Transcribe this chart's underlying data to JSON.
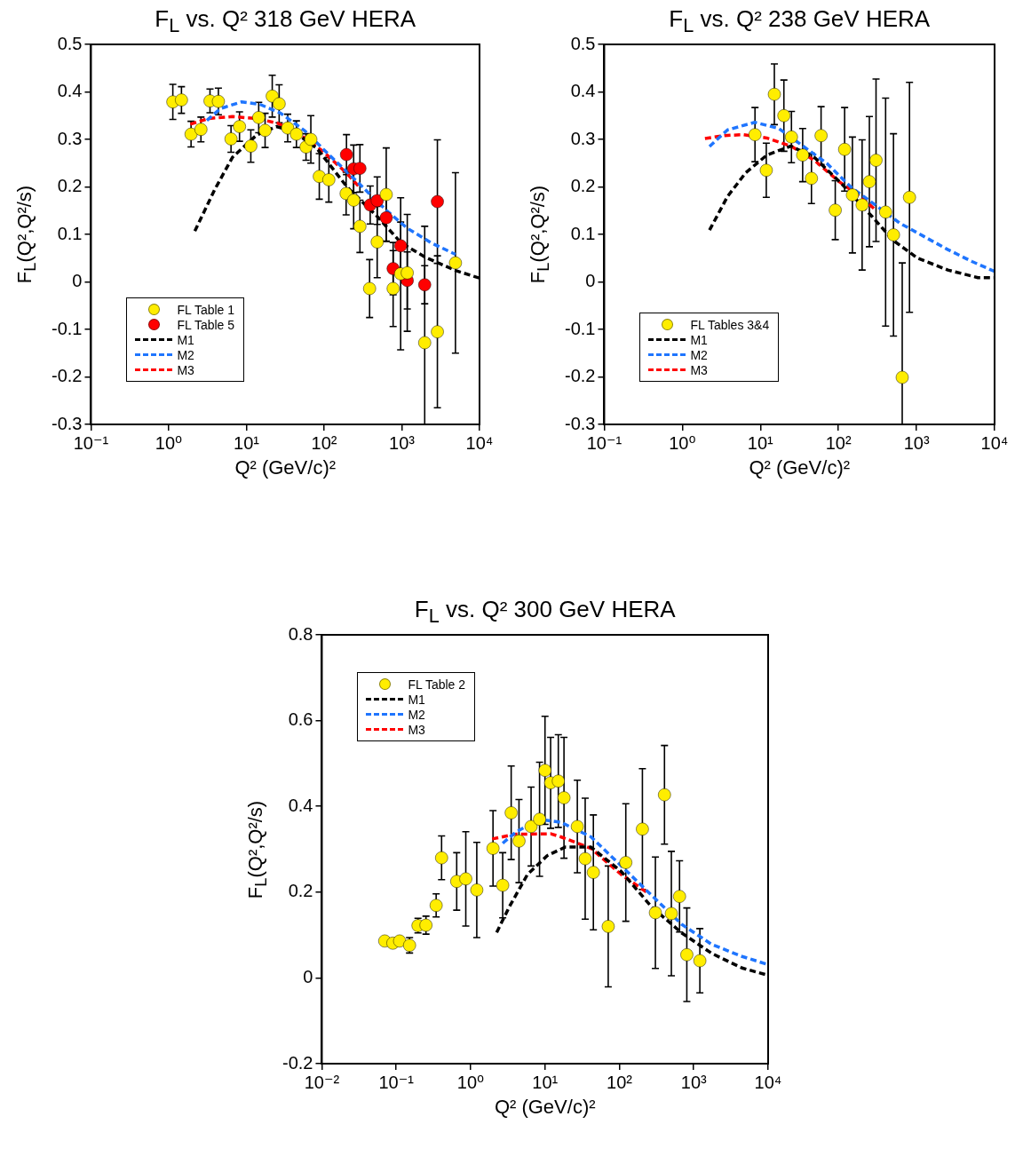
{
  "chart_data": [
    {
      "type": "scatter",
      "title": "F$_{L}$ vs. Q² 318 GeV HERA",
      "xlabel": "Q² (GeV/c)²",
      "ylabel": "F$_{L}$(Q²,Q²/s)",
      "log": "x",
      "xlim": [
        0.1,
        10000
      ],
      "xticks": [
        {
          "value": 0.1,
          "label": "10⁻¹"
        },
        {
          "value": 1,
          "label": "10⁰"
        },
        {
          "value": 10,
          "label": "10¹"
        },
        {
          "value": 100,
          "label": "10²"
        },
        {
          "value": 1000,
          "label": "10³"
        },
        {
          "value": 10000,
          "label": "10⁴"
        }
      ],
      "ylim": [
        -0.3,
        0.5
      ],
      "yticks": [
        0.5,
        0.4,
        0.3,
        0.2,
        0.1,
        0,
        -0.1,
        -0.2,
        -0.3
      ],
      "legend": "bottom left",
      "line_style": "dashed",
      "series": [
        {
          "name": "FL Table 1",
          "color": "#ffed00",
          "x": [
            1.13,
            1.46,
            1.94,
            2.6,
            3.4,
            4.36,
            6.34,
            8.15,
            11.4,
            14.4,
            17.4,
            21.5,
            26.4,
            34,
            44,
            58.5,
            67.5,
            86.7,
            115,
            192,
            240,
            289,
            385,
            482,
            630,
            773,
            966,
            1175,
            1970,
            2870,
            4900
          ],
          "values": [
            0.379,
            0.383,
            0.311,
            0.321,
            0.381,
            0.38,
            0.301,
            0.327,
            0.286,
            0.346,
            0.319,
            0.391,
            0.375,
            0.324,
            0.311,
            0.284,
            0.3,
            0.222,
            0.215,
            0.186,
            0.172,
            0.117,
            -0.014,
            0.084,
            0.184,
            -0.014,
            0.017,
            0.019,
            -0.128,
            -0.105,
            0.04
          ],
          "errors": [
            0.037,
            0.028,
            0.027,
            0.026,
            0.025,
            0.028,
            0.028,
            0.031,
            0.034,
            0.032,
            0.036,
            0.044,
            0.04,
            0.029,
            0.028,
            0.028,
            0.05,
            0.048,
            0.047,
            0.045,
            0.06,
            0.055,
            0.061,
            0.075,
            0.098,
            0.08,
            0.16,
            0.123,
            [
              -0.3,
              0.117
            ],
            0.16,
            0.19
          ],
          "marker": "circle"
        },
        {
          "name": "FL Table 5",
          "color": "#ff0000",
          "x": [
            194,
            240,
            289,
            392,
            482,
            630,
            773,
            966,
            1175,
            1970,
            2870
          ],
          "values": [
            0.268,
            0.238,
            0.239,
            0.162,
            0.171,
            0.135,
            0.028,
            0.076,
            0.003,
            -0.006,
            0.169
          ],
          "errors": [
            0.042,
            0.05,
            0.05,
            0.04,
            0.05,
            0.05,
            0.055,
            0.05,
            0.06,
            0.04,
            0.13
          ],
          "marker": "circle"
        },
        {
          "name": "M1",
          "type": "line",
          "color": "#000000",
          "x": [
            2.17,
            3.9,
            6.6,
            13.5,
            24.2,
            39.5,
            80.7,
            197,
            481,
            982,
            2005,
            4900,
            10000
          ],
          "values": [
            0.107,
            0.194,
            0.262,
            0.309,
            0.327,
            0.318,
            0.281,
            0.2,
            0.138,
            0.082,
            0.052,
            0.024,
            0.008
          ]
        },
        {
          "name": "M2",
          "type": "line",
          "color": "#1f75fe",
          "x": [
            3.1,
            4.64,
            8.67,
            14.8,
            27.7,
            56.5,
            115,
            282,
            629,
            1175,
            2400,
            4900
          ],
          "values": [
            0.34,
            0.365,
            0.379,
            0.374,
            0.355,
            0.318,
            0.268,
            0.207,
            0.151,
            0.113,
            0.082,
            0.058
          ]
        },
        {
          "name": "M3",
          "type": "line",
          "color": "#ff0000",
          "x": [
            1.9,
            3.25,
            6.6,
            13.5,
            25.3,
            47.2,
            96.6,
            197,
            294
          ],
          "values": [
            0.332,
            0.344,
            0.348,
            0.344,
            0.334,
            0.312,
            0.275,
            0.228,
            0.197
          ]
        }
      ]
    },
    {
      "type": "scatter",
      "title": "F$_{L}$ vs. Q² 238 GeV HERA",
      "xlabel": "Q² (GeV/c)²",
      "ylabel": "F$_{L}$(Q²,Q²/s)",
      "log": "x",
      "xlim": [
        0.1,
        10000
      ],
      "xticks": [
        {
          "value": 0.1,
          "label": "10⁻¹"
        },
        {
          "value": 1,
          "label": "10⁰"
        },
        {
          "value": 10,
          "label": "10¹"
        },
        {
          "value": 100,
          "label": "10²"
        },
        {
          "value": 1000,
          "label": "10³"
        },
        {
          "value": 10000,
          "label": "10⁴"
        }
      ],
      "ylim": [
        -0.3,
        0.5
      ],
      "yticks": [
        0.5,
        0.4,
        0.3,
        0.2,
        0.1,
        0,
        -0.1,
        -0.2,
        -0.3
      ],
      "legend": "bottom left",
      "line_style": "dashed",
      "series": [
        {
          "name": "FL Tables 3&4",
          "color": "#ffed00",
          "x": [
            8.53,
            11.9,
            15.1,
            20,
            25,
            34.8,
            45.1,
            59.9,
            91,
            120,
            151,
            201,
            249,
            303,
            402,
            507,
            656,
            813
          ],
          "values": [
            0.31,
            0.235,
            0.395,
            0.35,
            0.305,
            0.267,
            0.218,
            0.308,
            0.151,
            0.279,
            0.183,
            0.162,
            0.211,
            0.256,
            0.147,
            0.099,
            -0.201,
            0.178
          ],
          "errors": [
            0.057,
            0.057,
            0.064,
            0.075,
            0.054,
            0.056,
            0.053,
            0.061,
            0.062,
            0.088,
            0.122,
            0.137,
            0.137,
            0.171,
            0.24,
            0.213,
            [
              -0.3,
              0.04
            ],
            0.242
          ],
          "marker": "circle"
        },
        {
          "name": "M1",
          "type": "line",
          "color": "#000000",
          "x": [
            2.23,
            3.8,
            6.5,
            12.1,
            24.6,
            50,
            112,
            272,
            507,
            1030,
            2520,
            6120,
            10000
          ],
          "values": [
            0.109,
            0.18,
            0.23,
            0.267,
            0.286,
            0.261,
            0.205,
            0.137,
            0.087,
            0.05,
            0.025,
            0.009,
            0.009
          ]
        },
        {
          "name": "M2",
          "type": "line",
          "color": "#1f75fe",
          "x": [
            2.23,
            3.8,
            8.5,
            17.2,
            35.1,
            71.6,
            146,
            297,
            606,
            1234,
            2520,
            5130,
            10000
          ],
          "values": [
            0.285,
            0.32,
            0.336,
            0.323,
            0.286,
            0.249,
            0.199,
            0.162,
            0.124,
            0.096,
            0.068,
            0.043,
            0.022
          ]
        },
        {
          "name": "M3",
          "type": "line",
          "color": "#ff0000",
          "x": [
            1.95,
            3.47,
            5.93,
            12.1,
            24.6,
            50,
            102,
            190,
            297
          ],
          "values": [
            0.302,
            0.308,
            0.31,
            0.303,
            0.286,
            0.255,
            0.211,
            0.18,
            0.152
          ]
        }
      ]
    },
    {
      "type": "scatter",
      "title": "F$_{L}$ vs. Q² 300 GeV HERA",
      "xlabel": "Q² (GeV/c)²",
      "ylabel": "F$_{L}$(Q²,Q²/s)",
      "log": "x",
      "xlim": [
        0.01,
        10000
      ],
      "xticks": [
        {
          "value": 0.01,
          "label": "10⁻²"
        },
        {
          "value": 0.1,
          "label": "10⁻¹"
        },
        {
          "value": 1,
          "label": "10⁰"
        },
        {
          "value": 10,
          "label": "10¹"
        },
        {
          "value": 100,
          "label": "10²"
        },
        {
          "value": 1000,
          "label": "10³"
        },
        {
          "value": 10000,
          "label": "10⁴"
        }
      ],
      "ylim": [
        -0.2,
        0.8
      ],
      "yticks": [
        0.8,
        0.6,
        0.4,
        0.2,
        0,
        -0.2
      ],
      "legend": "top left",
      "line_style": "dashed",
      "series": [
        {
          "name": "FL Table 2",
          "color": "#ffed00",
          "x": [
            0.07,
            0.09,
            0.111,
            0.151,
            0.196,
            0.251,
            0.344,
            0.407,
            0.65,
            0.861,
            1.21,
            2,
            2.7,
            3.51,
            4.47,
            6.5,
            8.45,
            10,
            11.9,
            15.1,
            18,
            27.2,
            34.7,
            44.7,
            70.8,
            122,
            204,
            305,
            404,
            500,
            644,
            807,
            1208
          ],
          "values": [
            0.086,
            0.081,
            0.086,
            0.076,
            0.122,
            0.123,
            0.169,
            0.28,
            0.225,
            0.231,
            0.205,
            0.302,
            0.216,
            0.385,
            0.319,
            0.353,
            0.37,
            0.484,
            0.455,
            0.459,
            0.42,
            0.353,
            0.278,
            0.246,
            0.12,
            0.269,
            0.347,
            0.152,
            0.427,
            0.15,
            0.19,
            0.054,
            0.04
          ],
          "marker": "circle",
          "errors": [
            null,
            null,
            null,
            0.018,
            0.017,
            0.021,
            0.027,
            0.051,
            0.067,
            0.11,
            0.111,
            0.088,
            0.076,
            0.109,
            0.097,
            0.092,
            0.133,
            0.126,
            0.106,
            0.108,
            0.141,
            0.108,
            0.141,
            0.134,
            0.141,
            0.137,
            0.141,
            0.13,
            0.115,
            0.145,
            0.083,
            0.109,
            0.075
          ]
        },
        {
          "name": "M1",
          "type": "line",
          "color": "#000000",
          "x": [
            2.24,
            3.32,
            5.8,
            10.7,
            18.7,
            41.5,
            106,
            270,
            687,
            1750,
            4470,
            10000
          ],
          "values": [
            0.106,
            0.166,
            0.241,
            0.285,
            0.305,
            0.305,
            0.248,
            0.166,
            0.105,
            0.057,
            0.023,
            0.006
          ]
        },
        {
          "name": "M2",
          "type": "line",
          "color": "#1f75fe",
          "x": [
            2.7,
            3.99,
            7,
            8.45,
            16.3,
            41.5,
            106,
            270,
            687,
            1750,
            4470,
            10000
          ],
          "values": [
            0.314,
            0.339,
            0.363,
            0.37,
            0.363,
            0.329,
            0.261,
            0.193,
            0.125,
            0.078,
            0.05,
            0.031
          ]
        },
        {
          "name": "M3",
          "type": "line",
          "color": "#ff0000",
          "x": [
            1.95,
            3.99,
            12,
            16.3,
            41.5,
            106,
            245
          ],
          "values": [
            0.324,
            0.335,
            0.336,
            0.329,
            0.302,
            0.241,
            0.197
          ]
        }
      ]
    }
  ]
}
